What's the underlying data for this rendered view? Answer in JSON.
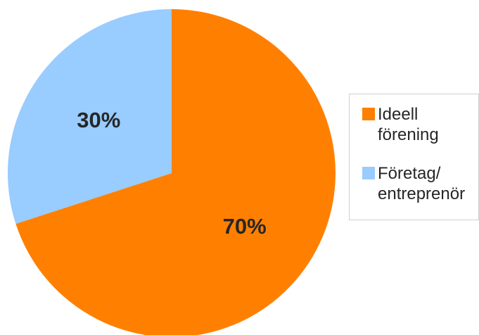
{
  "chart_data": {
    "type": "pie",
    "title": "",
    "start_angle": "12 o'clock, clockwise",
    "legend_position": "right",
    "slices": [
      {
        "label": "Ideell förening",
        "value": 70,
        "display": "70%",
        "color": "#FF8000"
      },
      {
        "label": "Företag/ entreprenör",
        "value": 30,
        "display": "30%",
        "color": "#99CCFF"
      }
    ]
  }
}
